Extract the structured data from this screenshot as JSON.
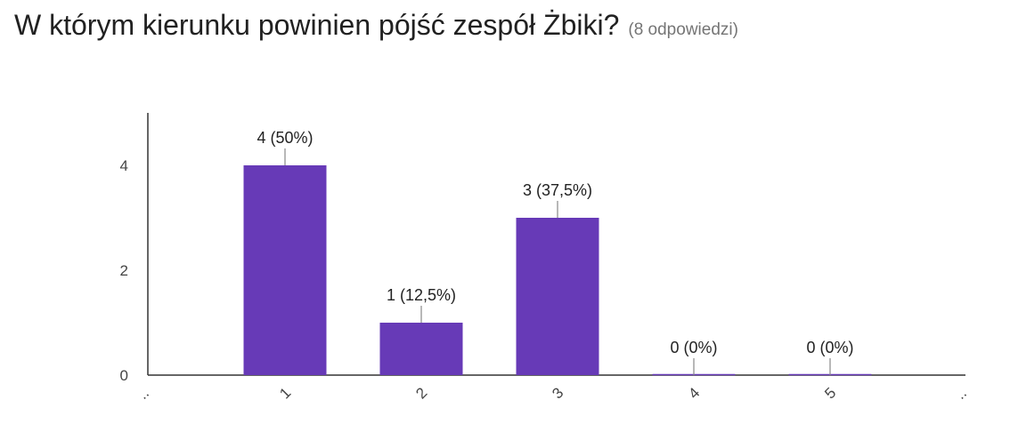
{
  "header": {
    "title": "W którym kierunku powinien pójść zespół Żbiki?",
    "subtitle": "(8 odpowiedzi)"
  },
  "chart_data": {
    "type": "bar",
    "title": "W którym kierunku powinien pójść zespół Żbiki?",
    "subtitle": "(8 odpowiedzi)",
    "categories": [
      "1",
      "2",
      "3",
      "4",
      "5"
    ],
    "values": [
      4,
      1,
      3,
      0,
      0
    ],
    "data_labels": [
      "4 (50%)",
      "1 (12,5%)",
      "3 (37,5%)",
      "0 (0%)",
      "0 (0%)"
    ],
    "y_ticks": [
      0,
      2,
      4
    ],
    "ylim": [
      0,
      5
    ],
    "xlabel": "",
    "ylabel": "",
    "grid": false,
    "legend": "none",
    "bar_color": "#673ab7"
  }
}
